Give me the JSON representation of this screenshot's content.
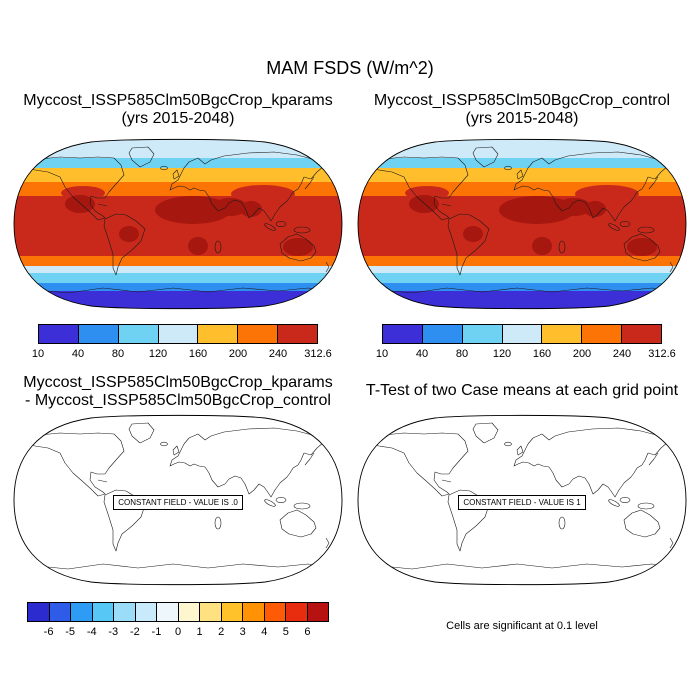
{
  "page": {
    "title": "MAM FSDS (W/m^2)",
    "background": "#FFFFFF"
  },
  "panels": {
    "top_left": {
      "title_line1": "Myccost_ISSP585Clm50BgcCrop_kparams",
      "title_line2": "(yrs 2015-2048)"
    },
    "top_right": {
      "title_line1": "Myccost_ISSP585Clm50BgcCrop_control",
      "title_line2": "(yrs 2015-2048)"
    },
    "bottom_left": {
      "title_line1": "Myccost_ISSP585Clm50BgcCrop_kparams",
      "title_line2": "- Myccost_ISSP585Clm50BgcCrop_control",
      "constant_field_label": "CONSTANT FIELD - VALUE IS .0"
    },
    "bottom_right": {
      "title": "T-Test of two Case means at each grid point",
      "constant_field_label": "CONSTANT FIELD - VALUE IS 1",
      "note": "Cells are significant at 0.1 level"
    }
  },
  "colorbars": {
    "flux": {
      "labels": [
        "10",
        "40",
        "80",
        "120",
        "160",
        "200",
        "240",
        "312.6"
      ],
      "colors": [
        "#3C2FD8",
        "#2E8FF0",
        "#70D2F2",
        "#CEEAF8",
        "#FFBE2B",
        "#FB7405",
        "#C9291A"
      ],
      "label_position": "ends"
    },
    "difference": {
      "labels": [
        "-6",
        "-5",
        "-4",
        "-3",
        "-2",
        "-1",
        "0",
        "1",
        "2",
        "3",
        "4",
        "5",
        "6"
      ],
      "colors": [
        "#2B2BD0",
        "#2E5BE8",
        "#2E9BF5",
        "#57C8F5",
        "#9BDCF8",
        "#C9EAFA",
        "#EDF7FC",
        "#FEF6CE",
        "#FFE182",
        "#FFC22B",
        "#FF9205",
        "#FF5A05",
        "#E82D0E",
        "#B51211"
      ],
      "label_position": "interior"
    }
  },
  "chart_data": [
    {
      "type": "heatmap",
      "panel": "top-left",
      "figure_title": "MAM FSDS (W/m^2)",
      "title": "Myccost_ISSP585Clm50BgcCrop_kparams",
      "subtitle": "(yrs 2015-2048)",
      "variable": "FSDS",
      "season": "MAM",
      "units": "W/m^2",
      "projection": "robinson",
      "levels": [
        10,
        40,
        80,
        120,
        160,
        200,
        240,
        312.6
      ],
      "palette": [
        "#3C2FD8",
        "#2E8FF0",
        "#70D2F2",
        "#CEEAF8",
        "#FFBE2B",
        "#FB7405",
        "#C9291A"
      ],
      "legend_position": "bottom",
      "zonal_pattern": [
        {
          "lat_band": "90N-70N",
          "value_bin": "120-160"
        },
        {
          "lat_band": "70N-62N",
          "value_bin": "80-120"
        },
        {
          "lat_band": "62N-50N",
          "value_bin": "160-200"
        },
        {
          "lat_band": "50N-33N",
          "value_bin": "200-240"
        },
        {
          "lat_band": "33N-30S",
          "value_bin": "240-312.6"
        },
        {
          "lat_band": "30S-42S",
          "value_bin": "200-240"
        },
        {
          "lat_band": "42S-50S",
          "value_bin": "120-160"
        },
        {
          "lat_band": "50S-58S",
          "value_bin": "80-120"
        },
        {
          "lat_band": "58S-64S",
          "value_bin": "40-80"
        },
        {
          "lat_band": "64S-90S",
          "value_bin": "10-40"
        }
      ],
      "hotspots": "darkest red near max over Sahara/Arabia/India, Mexico and SW US, southern Africa, Australia, eastern Brazil; dark blue over Antarctica"
    },
    {
      "type": "heatmap",
      "panel": "top-right",
      "figure_title": "MAM FSDS (W/m^2)",
      "title": "Myccost_ISSP585Clm50BgcCrop_control",
      "subtitle": "(yrs 2015-2048)",
      "variable": "FSDS",
      "season": "MAM",
      "units": "W/m^2",
      "projection": "robinson",
      "levels": [
        10,
        40,
        80,
        120,
        160,
        200,
        240,
        312.6
      ],
      "palette": [
        "#3C2FD8",
        "#2E8FF0",
        "#70D2F2",
        "#CEEAF8",
        "#FFBE2B",
        "#FB7405",
        "#C9291A"
      ],
      "legend_position": "bottom",
      "zonal_pattern": [
        {
          "lat_band": "90N-70N",
          "value_bin": "120-160"
        },
        {
          "lat_band": "70N-62N",
          "value_bin": "80-120"
        },
        {
          "lat_band": "62N-50N",
          "value_bin": "160-200"
        },
        {
          "lat_band": "50N-33N",
          "value_bin": "200-240"
        },
        {
          "lat_band": "33N-30S",
          "value_bin": "240-312.6"
        },
        {
          "lat_band": "30S-42S",
          "value_bin": "200-240"
        },
        {
          "lat_band": "42S-50S",
          "value_bin": "120-160"
        },
        {
          "lat_band": "50S-58S",
          "value_bin": "80-120"
        },
        {
          "lat_band": "58S-64S",
          "value_bin": "40-80"
        },
        {
          "lat_band": "64S-90S",
          "value_bin": "10-40"
        }
      ],
      "hotspots": "visually identical to kparams case at this scale"
    },
    {
      "type": "heatmap",
      "panel": "bottom-left",
      "title": "Myccost_ISSP585Clm50BgcCrop_kparams - Myccost_ISSP585Clm50BgcCrop_control",
      "projection": "robinson",
      "levels": [
        -6,
        -5,
        -4,
        -3,
        -2,
        -1,
        0,
        1,
        2,
        3,
        4,
        5,
        6
      ],
      "palette": [
        "#2B2BD0",
        "#2E5BE8",
        "#2E9BF5",
        "#57C8F5",
        "#9BDCF8",
        "#C9EAFA",
        "#EDF7FC",
        "#FEF6CE",
        "#FFE182",
        "#FFC22B",
        "#FF9205",
        "#FF5A05",
        "#E82D0E",
        "#B51211"
      ],
      "legend_position": "bottom",
      "field": "constant",
      "constant_value": 0.0,
      "annotation": "CONSTANT FIELD - VALUE IS .0"
    },
    {
      "type": "heatmap",
      "panel": "bottom-right",
      "title": "T-Test of two Case means at each grid point",
      "projection": "robinson",
      "field": "constant",
      "constant_value": 1,
      "annotation": "CONSTANT FIELD - VALUE IS 1",
      "note": "Cells are significant at 0.1 level"
    }
  ]
}
